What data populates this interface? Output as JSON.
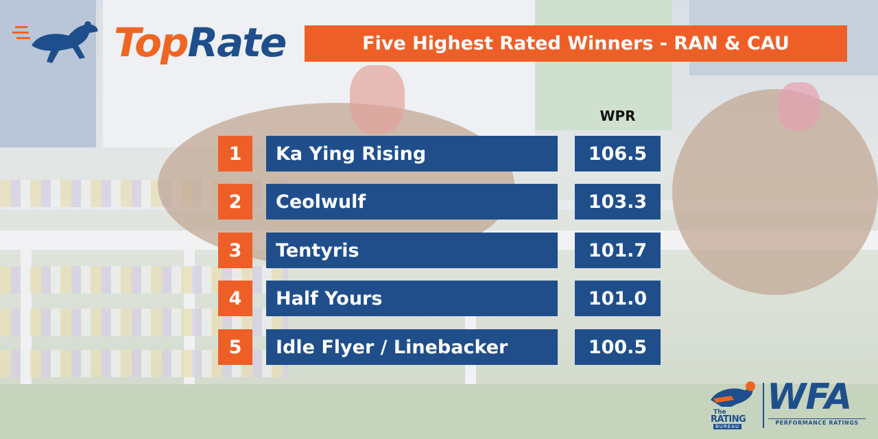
{
  "brand": {
    "logo_part1": "Top",
    "logo_part2": "Rate"
  },
  "title": "Five Highest Rated Winners - RAN & CAU",
  "column_header": "WPR",
  "rows": [
    {
      "rank": "1",
      "name": "Ka Ying Rising",
      "wpr": "106.5"
    },
    {
      "rank": "2",
      "name": "Ceolwulf",
      "wpr": "103.3"
    },
    {
      "rank": "3",
      "name": "Tentyris",
      "wpr": "101.7"
    },
    {
      "rank": "4",
      "name": "Half Yours",
      "wpr": "101.0"
    },
    {
      "rank": "5",
      "name": "Idle Flyer / Linebacker",
      "wpr": "100.5"
    }
  ],
  "footer_logos": {
    "rating_bureau_line1": "The",
    "rating_bureau_line2": "RATING",
    "rating_bureau_line3": "BUREAU",
    "wfa": "WFA",
    "wfa_sub": "PERFORMANCE RATINGS"
  },
  "colors": {
    "orange": "#ee5f27",
    "navy": "#1f4e8b"
  },
  "icons": [
    "running-horse-icon",
    "rating-bureau-horse-icon"
  ]
}
